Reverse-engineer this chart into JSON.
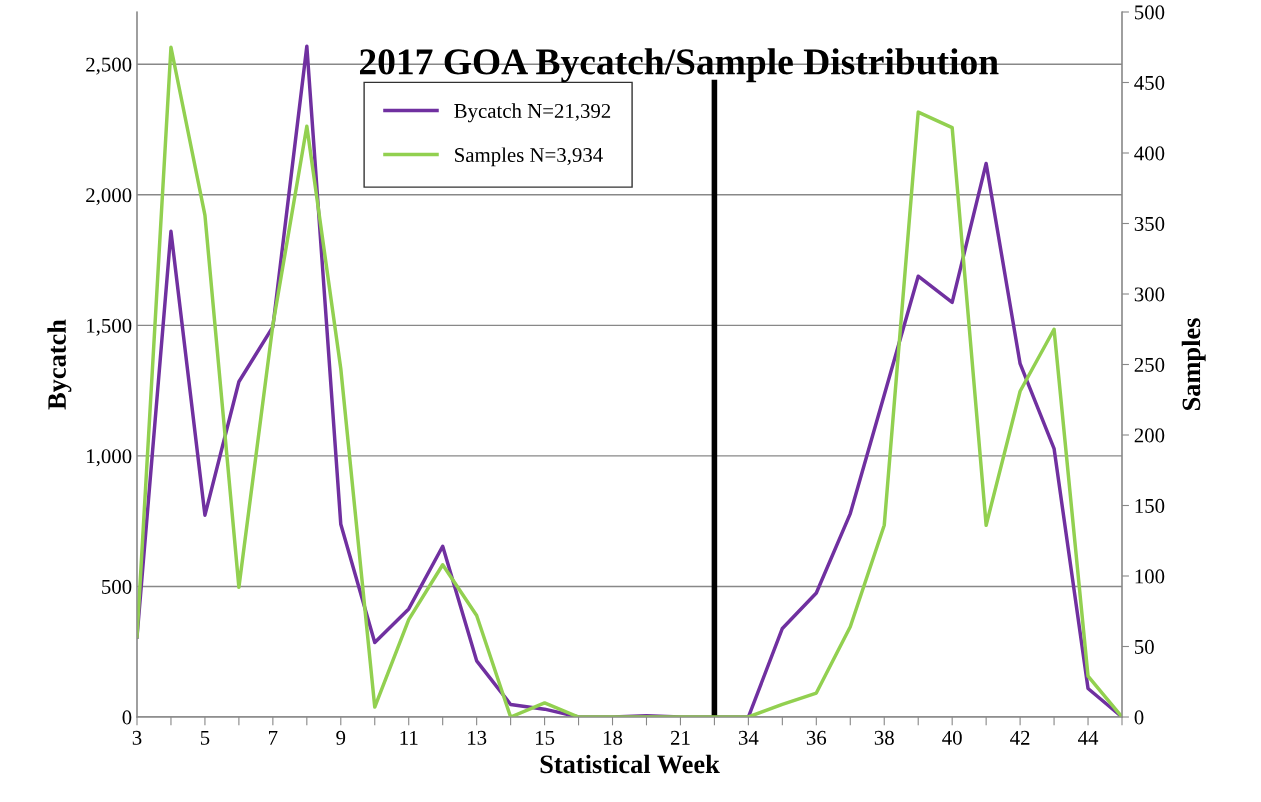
{
  "chart_data": {
    "type": "line",
    "title": "2017 GOA Bycatch/Sample Distribution",
    "xlabel": "Statistical Week",
    "ylabel": "Bycatch",
    "y2label": "Samples",
    "categories": [
      "3",
      null,
      "5",
      null,
      "7",
      null,
      "9",
      null,
      "11",
      null,
      "13",
      null,
      "15",
      null,
      "18",
      null,
      "21",
      null,
      "34",
      null,
      "36",
      null,
      "38",
      null,
      "40",
      null,
      "42",
      null,
      "44",
      null
    ],
    "series": [
      {
        "name": "Bycatch N=21,392",
        "color": "#7030a0",
        "values": [
          306,
          1860,
          773,
          1284,
          1494,
          2569,
          738,
          285,
          414,
          654,
          215,
          48,
          30,
          0,
          0,
          5,
          0,
          0,
          0,
          339,
          475,
          779,
          1233,
          1688,
          1588,
          2120,
          1353,
          1028,
          109,
          0
        ]
      },
      {
        "name": "Samples N=3,934",
        "color": "#92d050",
        "axis": "y2",
        "values": [
          57,
          475,
          356,
          92,
          278,
          419,
          247,
          7,
          69,
          108,
          72,
          0,
          10,
          0,
          0,
          0,
          0,
          0,
          0,
          9,
          17,
          64,
          136,
          429,
          418,
          136,
          231,
          275,
          29,
          0
        ]
      }
    ],
    "ylim": [
      0,
      2700
    ],
    "yticks": [
      {
        "value": 0,
        "label": "0"
      },
      {
        "value": 500,
        "label": "500"
      },
      {
        "value": 1000,
        "label": "1,000"
      },
      {
        "value": 1500,
        "label": "1,500"
      },
      {
        "value": 2000,
        "label": "2,000"
      },
      {
        "value": 2500,
        "label": "2,500"
      }
    ],
    "y2lim": [
      0,
      500
    ],
    "y2ticks": [
      0,
      50,
      100,
      150,
      200,
      250,
      300,
      350,
      400,
      450,
      500
    ],
    "grid": "y",
    "legend": "top",
    "marker": "none",
    "line_style": "solid"
  }
}
